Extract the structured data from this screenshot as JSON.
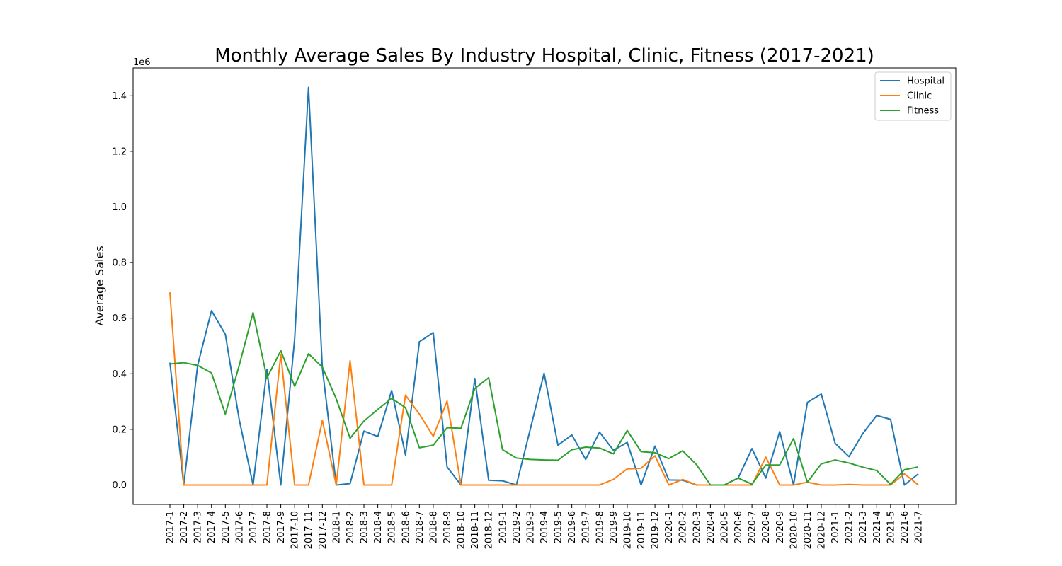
{
  "chart_data": {
    "type": "line",
    "title": "Monthly Average Sales By Industry Hospital, Clinic, Fitness (2017-2021)",
    "xlabel": "",
    "ylabel": "Average Sales",
    "y_scale_label": "1e6",
    "y_ticks": [
      "0.0",
      "0.2",
      "0.4",
      "0.6",
      "0.8",
      "1.0",
      "1.2",
      "1.4"
    ],
    "y_tick_values": [
      0,
      0.2,
      0.4,
      0.6,
      0.8,
      1.0,
      1.2,
      1.4
    ],
    "ylim": [
      -0.07,
      1.5
    ],
    "legend_position": "top-right",
    "categories": [
      "2017-1",
      "2017-2",
      "2017-3",
      "2017-4",
      "2017-5",
      "2017-6",
      "2017-7",
      "2017-8",
      "2017-9",
      "2017-10",
      "2017-11",
      "2017-12",
      "2018-1",
      "2018-2",
      "2018-3",
      "2018-4",
      "2018-5",
      "2018-6",
      "2018-7",
      "2018-8",
      "2018-9",
      "2018-10",
      "2018-11",
      "2018-12",
      "2019-1",
      "2019-2",
      "2019-3",
      "2019-4",
      "2019-5",
      "2019-6",
      "2019-7",
      "2019-8",
      "2019-9",
      "2019-10",
      "2019-11",
      "2019-12",
      "2020-1",
      "2020-2",
      "2020-3",
      "2020-4",
      "2020-5",
      "2020-6",
      "2020-7",
      "2020-8",
      "2020-9",
      "2020-10",
      "2020-11",
      "2020-12",
      "2021-1",
      "2021-2",
      "2021-3",
      "2021-4",
      "2021-5",
      "2021-6",
      "2021-7"
    ],
    "series": [
      {
        "name": "Hospital",
        "color": "#1f77b4",
        "values": [
          0.44,
          0.0,
          0.43,
          0.627,
          0.542,
          0.235,
          0.0,
          0.415,
          0.0,
          0.525,
          1.43,
          0.42,
          0.0,
          0.005,
          0.194,
          0.174,
          0.34,
          0.108,
          0.515,
          0.548,
          0.065,
          0.0,
          0.383,
          0.017,
          0.015,
          0.0,
          0.2,
          0.402,
          0.143,
          0.18,
          0.092,
          0.19,
          0.125,
          0.153,
          0.0,
          0.14,
          0.018,
          0.017,
          0.0,
          0.0,
          0.0,
          0.025,
          0.131,
          0.025,
          0.192,
          0.0,
          0.297,
          0.327,
          0.15,
          0.102,
          0.185,
          0.25,
          0.236,
          0.0,
          0.04
        ]
      },
      {
        "name": "Clinic",
        "color": "#ff7f0e",
        "values": [
          0.693,
          0.0,
          0.0,
          0.0,
          0.0,
          0.0,
          0.0,
          0.0,
          0.47,
          0.0,
          0.0,
          0.232,
          0.0,
          0.447,
          0.0,
          0.0,
          0.0,
          0.323,
          0.255,
          0.175,
          0.302,
          0.0,
          0.0,
          0.0,
          0.0,
          0.0,
          0.0,
          0.0,
          0.0,
          0.0,
          0.0,
          0.0,
          0.02,
          0.058,
          0.06,
          0.105,
          0.0,
          0.02,
          0.0,
          0.0,
          0.0,
          0.0,
          0.0,
          0.1,
          0.0,
          0.0,
          0.01,
          0.0,
          0.0,
          0.002,
          0.0,
          0.0,
          0.0,
          0.04,
          0.0
        ]
      },
      {
        "name": "Fitness",
        "color": "#2ca02c",
        "values": [
          0.435,
          0.44,
          0.43,
          0.403,
          0.255,
          0.43,
          0.62,
          0.385,
          0.483,
          0.355,
          0.472,
          0.424,
          0.31,
          0.168,
          0.23,
          0.272,
          0.312,
          0.278,
          0.134,
          0.143,
          0.206,
          0.204,
          0.347,
          0.386,
          0.127,
          0.097,
          0.092,
          0.09,
          0.089,
          0.127,
          0.136,
          0.133,
          0.112,
          0.196,
          0.12,
          0.116,
          0.095,
          0.123,
          0.073,
          0.0,
          0.0,
          0.025,
          0.003,
          0.072,
          0.072,
          0.167,
          0.01,
          0.076,
          0.09,
          0.079,
          0.064,
          0.052,
          0.002,
          0.055,
          0.065
        ]
      }
    ]
  }
}
